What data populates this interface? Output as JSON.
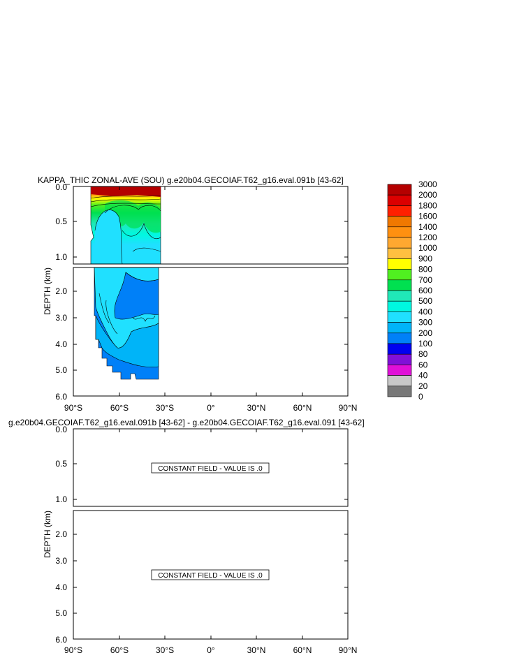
{
  "chart_data": [
    {
      "type": "heatmap",
      "title": "KAPPA_THIC ZONAL-AVE (SOU) g.e20b04.GECOIAF.T62_g16.eval.091b [43-62]",
      "ylabel": "DEPTH (km)",
      "x_ticks": [
        "90°S",
        "60°S",
        "30°S",
        "0°",
        "30°N",
        "60°N",
        "90°N"
      ],
      "upper_panel": {
        "ylim": [
          0.0,
          1.1
        ],
        "y_ticks": [
          "0.0",
          "0.5",
          "1.0"
        ]
      },
      "lower_panel": {
        "ylim": [
          1.1,
          6.0
        ],
        "y_ticks": [
          "2.0",
          "3.0",
          "4.0",
          "5.0",
          "6.0"
        ]
      },
      "data_extent_latitude": [
        -78,
        -33
      ],
      "data_extent_depth_km": [
        0.0,
        5.4
      ],
      "colorbar": {
        "levels": [
          "3000",
          "2000",
          "1800",
          "1600",
          "1400",
          "1200",
          "1000",
          "900",
          "800",
          "700",
          "600",
          "500",
          "400",
          "300",
          "200",
          "100",
          "80",
          "60",
          "40",
          "20",
          "0"
        ],
        "colors": [
          "#b40000",
          "#dc0000",
          "#ff2000",
          "#f07800",
          "#ff9010",
          "#ffa830",
          "#ffc040",
          "#ffff00",
          "#50f020",
          "#00e050",
          "#20e8b8",
          "#00f8e0",
          "#20e0ff",
          "#00b4f8",
          "#0080f8",
          "#0000f0",
          "#8010d8",
          "#e010d8",
          "#c8c8c8",
          "#787878"
        ]
      }
    },
    {
      "type": "heatmap",
      "title": "g.e20b04.GECOIAF.T62_g16.eval.091b [43-62] - g.e20b04.GECOIAF.T62_g16.eval.091 [43-62]",
      "ylabel": "DEPTH (km)",
      "x_ticks": [
        "90°S",
        "60°S",
        "30°S",
        "0°",
        "30°N",
        "60°N",
        "90°N"
      ],
      "upper_panel": {
        "ylim": [
          0.0,
          1.1
        ],
        "y_ticks": [
          "0.0",
          "0.5",
          "1.0"
        ],
        "annotation": "CONSTANT FIELD - VALUE IS .0"
      },
      "lower_panel": {
        "ylim": [
          1.1,
          6.0
        ],
        "y_ticks": [
          "2.0",
          "3.0",
          "4.0",
          "5.0",
          "6.0"
        ],
        "annotation": "CONSTANT FIELD - VALUE IS .0"
      },
      "constant_value": 0
    }
  ]
}
